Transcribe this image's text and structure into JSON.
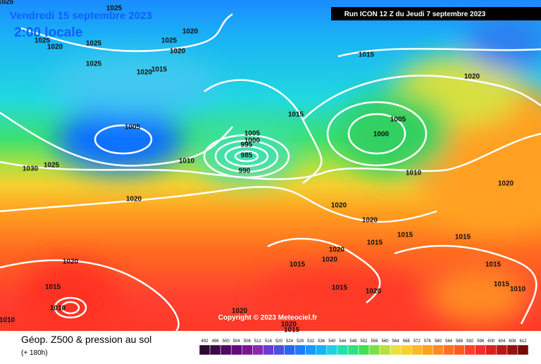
{
  "header": {
    "date": "Vendredi 15 septembre 2023",
    "time": "2:00 locale",
    "run": "Run ICON 12 Z du Jeudi 7 septembre 2023"
  },
  "copyright": "Copyright © 2023 Meteociel.fr",
  "legend": {
    "title": "Géop. Z500 & pression au sol",
    "subtitle": "(+ 180h)",
    "scale": [
      492,
      496,
      500,
      504,
      508,
      512,
      516,
      520,
      524,
      528,
      532,
      536,
      540,
      544,
      548,
      552,
      556,
      560,
      564,
      568,
      572,
      576,
      580,
      584,
      588,
      592,
      596,
      600,
      604,
      608,
      612
    ]
  },
  "isobar_labels": [
    "1025",
    "1025",
    "1020",
    "1025",
    "1020",
    "1025",
    "1025",
    "1020",
    "1015",
    "1020",
    "1025",
    "1015",
    "1020",
    "1015",
    "1005",
    "1005",
    "1000",
    "1005",
    "1000",
    "995",
    "985",
    "990",
    "1010",
    "1025",
    "1030",
    "1010",
    "1020",
    "1020",
    "1020",
    "1020",
    "1015",
    "1015",
    "1015",
    "1020",
    "1020",
    "1015",
    "1015",
    "1020",
    "1015",
    "1015",
    "1020",
    "1015",
    "1010",
    "1020",
    "1010",
    "1020",
    "1015",
    "1010"
  ]
}
